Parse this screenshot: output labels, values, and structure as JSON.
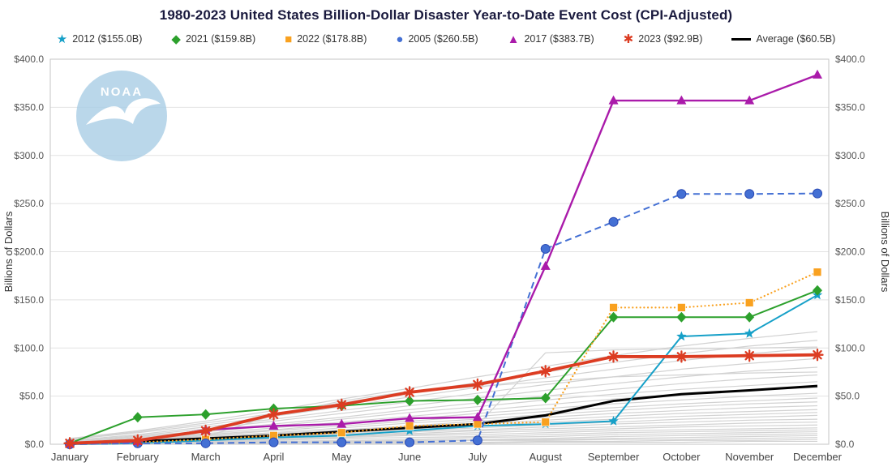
{
  "title": "1980-2023 United States Billion-Dollar Disaster Year-to-Date Event Cost (CPI-Adjusted)",
  "watermark": "NOAA",
  "chart_data": {
    "type": "line",
    "title": "1980-2023 United States Billion-Dollar Disaster Year-to-Date Event Cost (CPI-Adjusted)",
    "months": [
      "January",
      "February",
      "March",
      "April",
      "May",
      "June",
      "July",
      "August",
      "September",
      "October",
      "November",
      "December"
    ],
    "ylabel_left": "Billions of Dollars",
    "ylabel_right": "Billions of Dollars",
    "ylim": [
      0,
      400
    ],
    "ytick_step": 50,
    "grid": "horizontal",
    "legend_position": "top",
    "series": [
      {
        "name": "2012",
        "label": "2012 ($155.0B)",
        "color": "#16a0c8",
        "marker": "star",
        "line": "solid",
        "width": 2,
        "z": 2,
        "values": [
          0,
          1,
          4,
          7,
          9,
          14,
          19,
          21,
          24,
          112,
          115,
          155
        ]
      },
      {
        "name": "2021",
        "label": "2021 ($159.8B)",
        "color": "#2ca02c",
        "marker": "diamond",
        "line": "solid",
        "width": 2,
        "z": 3,
        "values": [
          1,
          28,
          31,
          37,
          40,
          45,
          46,
          48,
          132,
          132,
          132,
          159.8
        ]
      },
      {
        "name": "2022",
        "label": "2022 ($178.8B)",
        "color": "#f9a11f",
        "marker": "square",
        "line": "dotted",
        "width": 2.2,
        "z": 4,
        "values": [
          0,
          2,
          5,
          9,
          12,
          19,
          21,
          23,
          142,
          142,
          147,
          178.8
        ]
      },
      {
        "name": "2005",
        "label": "2005 ($260.5B)",
        "color": "#4470d4",
        "marker": "circle",
        "line": "dashed",
        "width": 2,
        "z": 5,
        "values": [
          0,
          1,
          1,
          2,
          2,
          2,
          4,
          203,
          231,
          260,
          260,
          260.5
        ]
      },
      {
        "name": "2017",
        "label": "2017 ($383.7B)",
        "color": "#aa1baa",
        "marker": "triangle",
        "line": "solid",
        "width": 2.4,
        "z": 6,
        "values": [
          0.5,
          3,
          15,
          19,
          21,
          27,
          28,
          185,
          357,
          357,
          357,
          383.7
        ]
      },
      {
        "name": "2023",
        "label": "2023 ($92.9B)",
        "color": "#dc3c22",
        "marker": "asterisk",
        "line": "solid",
        "width": 3.8,
        "z": 7,
        "values": [
          1,
          4,
          14,
          31,
          41,
          54,
          62,
          76,
          91,
          91,
          92,
          92.9
        ]
      },
      {
        "name": "Average",
        "label": "Average ($60.5B)",
        "color": "#000000",
        "marker": "none",
        "line": "solid",
        "width": 3,
        "z": 1,
        "values": [
          1,
          3,
          6,
          9,
          13,
          17,
          21,
          30,
          45,
          52,
          56,
          60.5
        ]
      }
    ],
    "background_series": {
      "color": "#d2d2d2",
      "lines": [
        [
          0,
          0,
          0,
          1,
          1,
          1,
          1,
          2,
          2,
          2,
          3,
          3
        ],
        [
          0,
          0,
          1,
          1,
          2,
          2,
          2,
          3,
          3,
          4,
          4,
          5
        ],
        [
          0,
          1,
          1,
          2,
          2,
          3,
          4,
          4,
          5,
          5,
          6,
          7
        ],
        [
          0,
          0,
          1,
          2,
          3,
          3,
          4,
          5,
          6,
          7,
          8,
          9
        ],
        [
          1,
          1,
          2,
          2,
          3,
          4,
          5,
          6,
          8,
          9,
          10,
          11
        ],
        [
          0,
          1,
          2,
          3,
          4,
          5,
          7,
          8,
          10,
          11,
          12,
          13
        ],
        [
          0,
          1,
          2,
          4,
          6,
          7,
          8,
          10,
          12,
          13,
          14,
          15
        ],
        [
          1,
          2,
          3,
          5,
          7,
          9,
          10,
          12,
          14,
          15,
          16,
          17
        ],
        [
          0,
          1,
          3,
          5,
          8,
          10,
          12,
          14,
          16,
          18,
          19,
          20
        ],
        [
          1,
          2,
          4,
          6,
          9,
          11,
          14,
          16,
          18,
          20,
          22,
          23
        ],
        [
          0,
          2,
          4,
          7,
          10,
          13,
          15,
          18,
          21,
          23,
          25,
          26
        ],
        [
          1,
          3,
          5,
          8,
          11,
          14,
          17,
          20,
          23,
          26,
          28,
          30
        ],
        [
          0,
          2,
          5,
          9,
          12,
          16,
          19,
          23,
          26,
          29,
          31,
          33
        ],
        [
          1,
          3,
          6,
          10,
          14,
          18,
          21,
          25,
          29,
          32,
          34,
          36
        ],
        [
          2,
          4,
          7,
          11,
          15,
          19,
          24,
          28,
          32,
          35,
          38,
          40
        ],
        [
          1,
          4,
          8,
          12,
          17,
          22,
          26,
          31,
          35,
          39,
          42,
          44
        ],
        [
          2,
          5,
          9,
          14,
          19,
          24,
          29,
          34,
          38,
          42,
          45,
          48
        ],
        [
          1,
          5,
          10,
          15,
          21,
          26,
          32,
          37,
          42,
          46,
          50,
          53
        ],
        [
          2,
          6,
          11,
          17,
          23,
          29,
          35,
          41,
          47,
          52,
          56,
          59
        ],
        [
          2,
          7,
          13,
          19,
          26,
          33,
          39,
          46,
          52,
          57,
          61,
          65
        ],
        [
          3,
          8,
          14,
          21,
          28,
          36,
          43,
          50,
          57,
          63,
          68,
          72
        ],
        [
          3,
          9,
          16,
          24,
          32,
          40,
          48,
          56,
          63,
          70,
          76,
          80
        ],
        [
          4,
          10,
          18,
          26,
          35,
          44,
          53,
          62,
          70,
          78,
          84,
          89
        ],
        [
          2,
          4,
          8,
          30,
          45,
          55,
          60,
          65,
          70,
          72,
          74,
          75
        ],
        [
          1,
          2,
          3,
          5,
          8,
          12,
          20,
          95,
          98,
          99,
          100,
          101
        ],
        [
          5,
          12,
          20,
          29,
          39,
          49,
          59,
          69,
          78,
          87,
          94,
          100
        ],
        [
          5,
          13,
          22,
          32,
          43,
          54,
          64,
          75,
          85,
          94,
          102,
          108
        ],
        [
          6,
          14,
          24,
          35,
          47,
          58,
          70,
          81,
          92,
          102,
          110,
          117
        ]
      ]
    }
  }
}
